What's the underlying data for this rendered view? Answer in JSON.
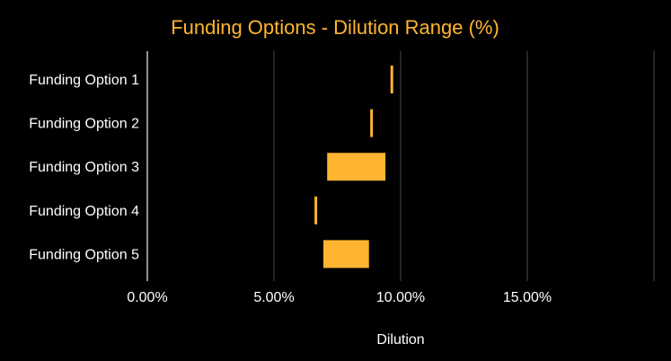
{
  "chart_data": {
    "type": "range-bar",
    "orientation": "horizontal",
    "title": "Funding Options - Dilution Range (%)",
    "xlabel": "Dilution",
    "ylabel": "",
    "xlim": [
      0,
      20
    ],
    "x_ticks": [
      0,
      5,
      10,
      15
    ],
    "x_tick_labels": [
      "0.00%",
      "5.00%",
      "10.00%",
      "15.00%"
    ],
    "grid": "vertical",
    "categories": [
      "Funding Option 1",
      "Funding Option 2",
      "Funding Option 3",
      "Funding Option 4",
      "Funding Option 5"
    ],
    "ranges": [
      {
        "low": 9.6,
        "high": 9.7
      },
      {
        "low": 8.8,
        "high": 8.9
      },
      {
        "low": 7.1,
        "high": 9.4
      },
      {
        "low": 6.6,
        "high": 6.7
      },
      {
        "low": 6.95,
        "high": 8.75
      }
    ],
    "colors": {
      "bar": "#FFB531",
      "title": "#FFB531",
      "text": "#FFFFFF",
      "grid": "#4A4A4A",
      "axis": "#BFBFBF",
      "background": "#000000"
    }
  }
}
